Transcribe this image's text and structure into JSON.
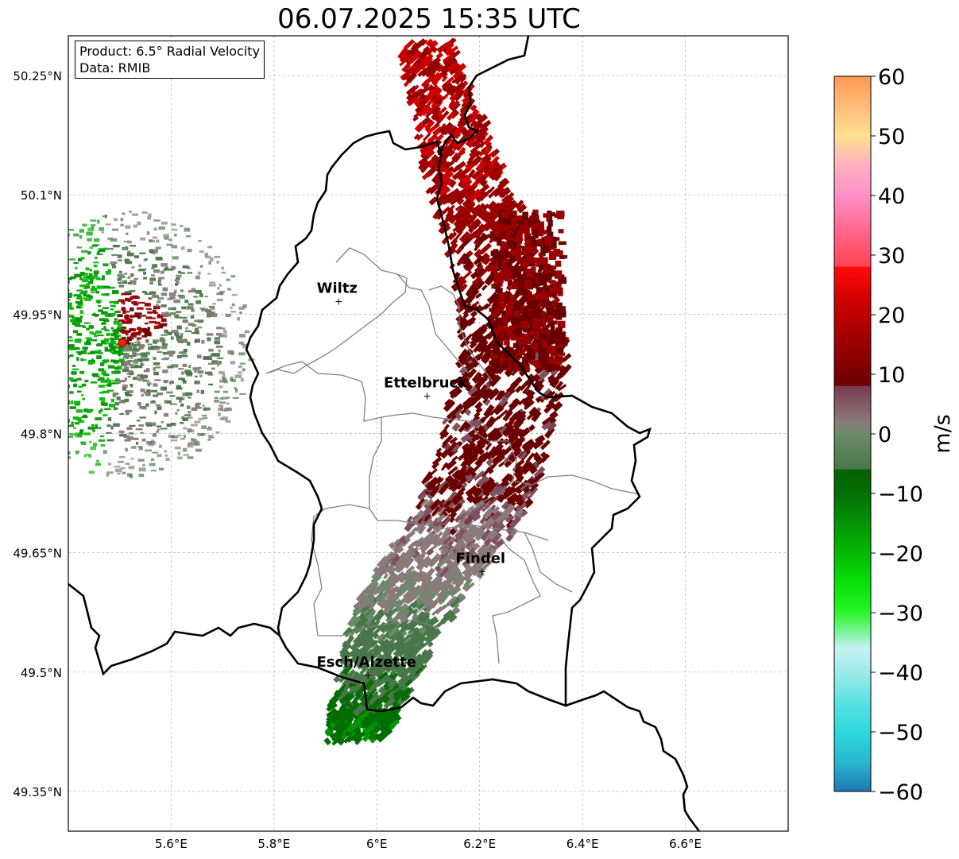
{
  "title": "06.07.2025 15:35 UTC",
  "info_box": {
    "product": "Product: 6.5° Radial Velocity",
    "data_source": "Data: RMIB"
  },
  "map": {
    "lon_range": [
      5.4,
      6.8
    ],
    "lat_range": [
      49.3,
      50.3
    ],
    "lon_ticks": [
      {
        "value": 5.6,
        "label": "5.6°E"
      },
      {
        "value": 5.8,
        "label": "5.8°E"
      },
      {
        "value": 6.0,
        "label": "6°E"
      },
      {
        "value": 6.2,
        "label": "6.2°E"
      },
      {
        "value": 6.4,
        "label": "6.4°E"
      },
      {
        "value": 6.6,
        "label": "6.6°E"
      }
    ],
    "lat_ticks": [
      {
        "value": 50.25,
        "label": "50.25°N"
      },
      {
        "value": 50.1,
        "label": "50.1°N"
      },
      {
        "value": 49.95,
        "label": "49.95°N"
      },
      {
        "value": 49.8,
        "label": "49.8°N"
      },
      {
        "value": 49.65,
        "label": "49.65°N"
      },
      {
        "value": 49.5,
        "label": "49.5°N"
      },
      {
        "value": 49.35,
        "label": "49.35°N"
      }
    ],
    "grid": true,
    "cities": [
      {
        "name": "Wiltz",
        "lon": 5.932,
        "lat": 49.967
      },
      {
        "name": "Ettelbruck",
        "lon": 6.104,
        "lat": 49.848
      },
      {
        "name": "Findel",
        "lon": 6.211,
        "lat": 49.627
      },
      {
        "name": "Esch/Alzette",
        "lon": 5.989,
        "lat": 49.497
      }
    ],
    "radar_site": {
      "lon": 5.505,
      "lat": 49.914
    }
  },
  "colorbar": {
    "label": "m/s",
    "min": -60,
    "max": 60,
    "ticks": [
      {
        "value": 60,
        "label": "60"
      },
      {
        "value": 50,
        "label": "50"
      },
      {
        "value": 40,
        "label": "40"
      },
      {
        "value": 30,
        "label": "30"
      },
      {
        "value": 20,
        "label": "20"
      },
      {
        "value": 10,
        "label": "10"
      },
      {
        "value": 0,
        "label": "0"
      },
      {
        "value": -10,
        "label": "−10"
      },
      {
        "value": -20,
        "label": "−20"
      },
      {
        "value": -30,
        "label": "−30"
      },
      {
        "value": -40,
        "label": "−40"
      },
      {
        "value": -50,
        "label": "−50"
      },
      {
        "value": -60,
        "label": "−60"
      }
    ],
    "stops": [
      {
        "value": -60,
        "color": "#1f77b4"
      },
      {
        "value": -55,
        "color": "#28b8cf"
      },
      {
        "value": -50,
        "color": "#2ed8dd"
      },
      {
        "value": -45,
        "color": "#59e2e2"
      },
      {
        "value": -40,
        "color": "#9eeaea"
      },
      {
        "value": -36,
        "color": "#c6f2f2"
      },
      {
        "value": -34,
        "color": "#8ef2b0"
      },
      {
        "value": -30,
        "color": "#2af52a"
      },
      {
        "value": -25,
        "color": "#08e008"
      },
      {
        "value": -20,
        "color": "#05b805"
      },
      {
        "value": -15,
        "color": "#049404"
      },
      {
        "value": -10,
        "color": "#036e03"
      },
      {
        "value": -6,
        "color": "#026102"
      },
      {
        "value": -5.9,
        "color": "#4a774a"
      },
      {
        "value": 0,
        "color": "#6b8a6b"
      },
      {
        "value": 2,
        "color": "#8a7a7a"
      },
      {
        "value": 6,
        "color": "#805060"
      },
      {
        "value": 8,
        "color": "#7a3a48"
      },
      {
        "value": 8.1,
        "color": "#6b0000"
      },
      {
        "value": 15,
        "color": "#990000"
      },
      {
        "value": 22,
        "color": "#cc0000"
      },
      {
        "value": 28,
        "color": "#ff0a0a"
      },
      {
        "value": 28.1,
        "color": "#ff4455"
      },
      {
        "value": 34,
        "color": "#ff6688"
      },
      {
        "value": 40,
        "color": "#ff90c8"
      },
      {
        "value": 45,
        "color": "#ffb0c0"
      },
      {
        "value": 50,
        "color": "#ffe090"
      },
      {
        "value": 55,
        "color": "#ffbb7a"
      },
      {
        "value": 60,
        "color": "#ff9955"
      }
    ]
  }
}
